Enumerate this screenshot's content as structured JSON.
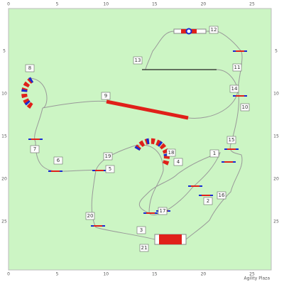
{
  "ruler": {
    "top": [
      "0",
      "5",
      "10",
      "15",
      "20",
      "25"
    ],
    "bottom": [
      "0",
      "5",
      "10",
      "15",
      "20",
      "25"
    ],
    "left": [
      "5",
      "10",
      "15",
      "20",
      "25"
    ],
    "right": [
      "5",
      "10",
      "15",
      "20",
      "25"
    ]
  },
  "obstacles": [
    "1",
    "2",
    "3",
    "4",
    "5",
    "6",
    "7",
    "8",
    "9",
    "10",
    "11",
    "12",
    "13",
    "14",
    "15",
    "16",
    "17",
    "18",
    "19",
    "20",
    "21"
  ],
  "footer": "Agility Plaza"
}
